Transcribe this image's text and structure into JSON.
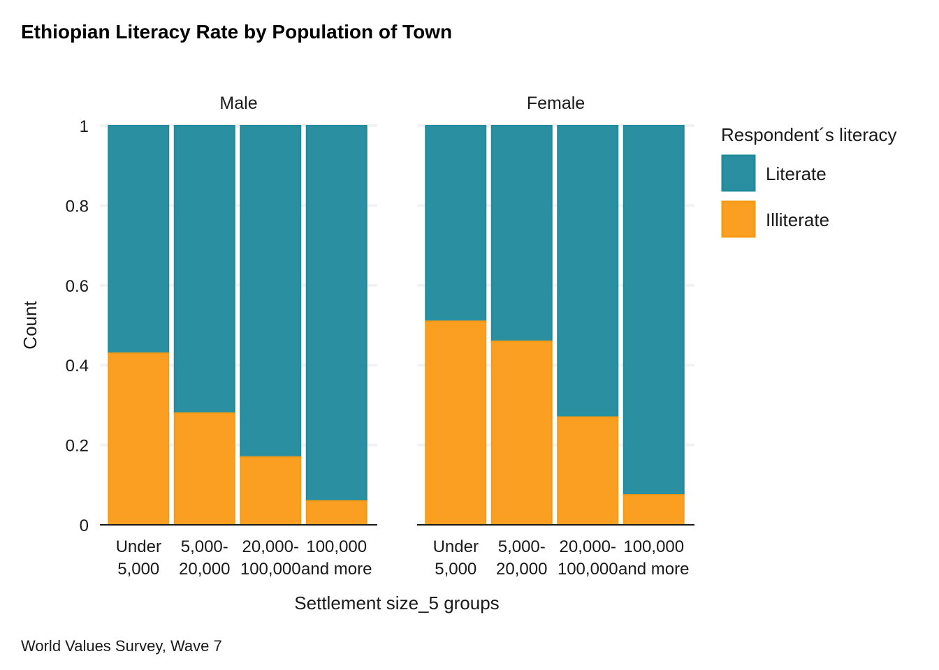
{
  "chart_data": {
    "type": "bar",
    "stacked": true,
    "title": "Ethiopian Literacy Rate by Population of Town",
    "xlabel": "Settlement size_5 groups",
    "ylabel": "Count",
    "caption": "World Values Survey,  Wave 7",
    "ylim": [
      0,
      1
    ],
    "yticks": [
      "0",
      "0.2",
      "0.4",
      "0.6",
      "0.8",
      "1"
    ],
    "categories": [
      [
        "Under",
        "5,000"
      ],
      [
        "5,000-",
        "20,000"
      ],
      [
        "20,000-",
        "100,000"
      ],
      [
        "100,000",
        "and more"
      ]
    ],
    "legend": {
      "title": "Respondent´s literacy",
      "position": "right"
    },
    "colors": {
      "Literate": "#2a8fa0",
      "Illiterate": "#fa9f22"
    },
    "facets": [
      {
        "name": "Male",
        "series": [
          {
            "name": "Literate",
            "values": [
              0.57,
              0.72,
              0.83,
              0.94
            ]
          },
          {
            "name": "Illiterate",
            "values": [
              0.43,
              0.28,
              0.17,
              0.06
            ]
          }
        ]
      },
      {
        "name": "Female",
        "series": [
          {
            "name": "Literate",
            "values": [
              0.49,
              0.54,
              0.73,
              0.925
            ]
          },
          {
            "name": "Illiterate",
            "values": [
              0.51,
              0.46,
              0.27,
              0.075
            ]
          }
        ]
      }
    ]
  }
}
